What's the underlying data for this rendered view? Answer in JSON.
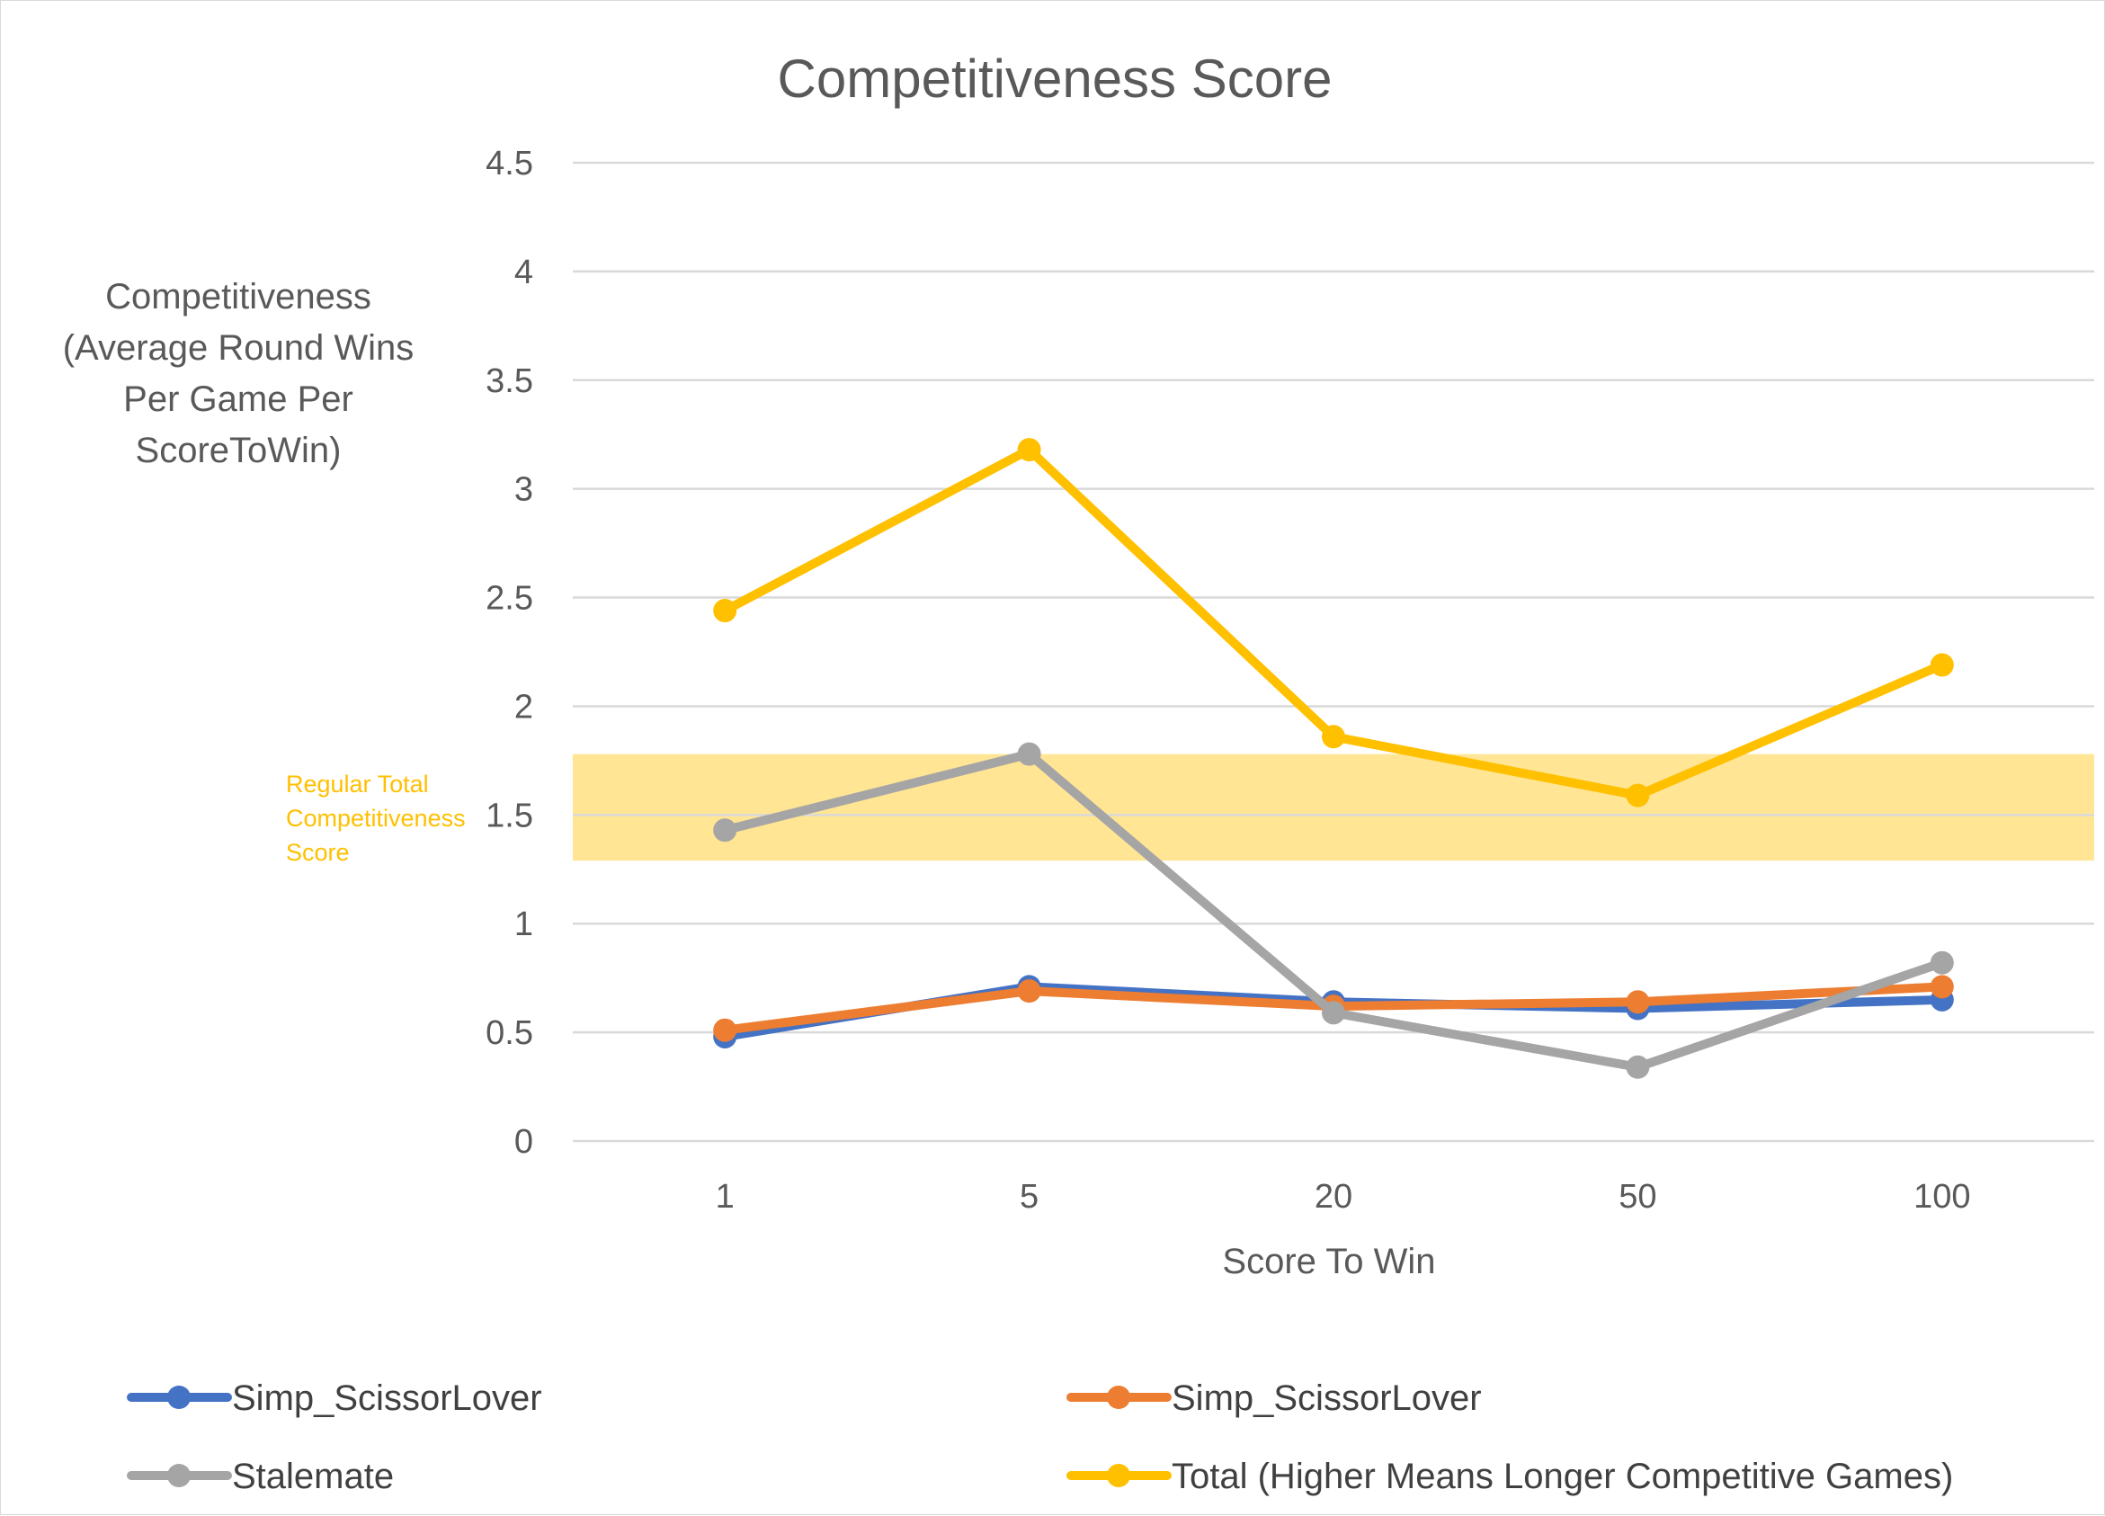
{
  "chart_data": {
    "type": "line",
    "title": "Competitiveness Score",
    "xlabel": "Score To Win",
    "ylabel": [
      "Competitiveness",
      "(Average Round Wins",
      "Per Game Per",
      "ScoreToWin)"
    ],
    "categories": [
      "1",
      "5",
      "20",
      "50",
      "100"
    ],
    "ylim": [
      0,
      4.5
    ],
    "yticks": [
      "0",
      "0.5",
      "1",
      "1.5",
      "2",
      "2.5",
      "3",
      "3.5",
      "4",
      "4.5"
    ],
    "grid": true,
    "legend_position": "bottom",
    "band": {
      "label": [
        "Regular Total",
        "Competitiveness",
        "Score"
      ],
      "from": 1.29,
      "to": 1.78,
      "color": "#ffc000"
    },
    "series": [
      {
        "name": "Simp_ScissorLover",
        "color": "#4472c4",
        "values": [
          0.48,
          0.71,
          0.64,
          0.61,
          0.65
        ]
      },
      {
        "name": "Simp_ScissorLover",
        "color": "#ed7d31",
        "values": [
          0.51,
          0.69,
          0.62,
          0.64,
          0.71
        ]
      },
      {
        "name": "Stalemate",
        "color": "#a5a5a5",
        "values": [
          1.43,
          1.78,
          0.59,
          0.34,
          0.82
        ]
      },
      {
        "name": "Total (Higher Means Longer Competitive Games)",
        "color": "#ffc000",
        "values": [
          2.44,
          3.18,
          1.86,
          1.59,
          2.19
        ]
      }
    ]
  }
}
